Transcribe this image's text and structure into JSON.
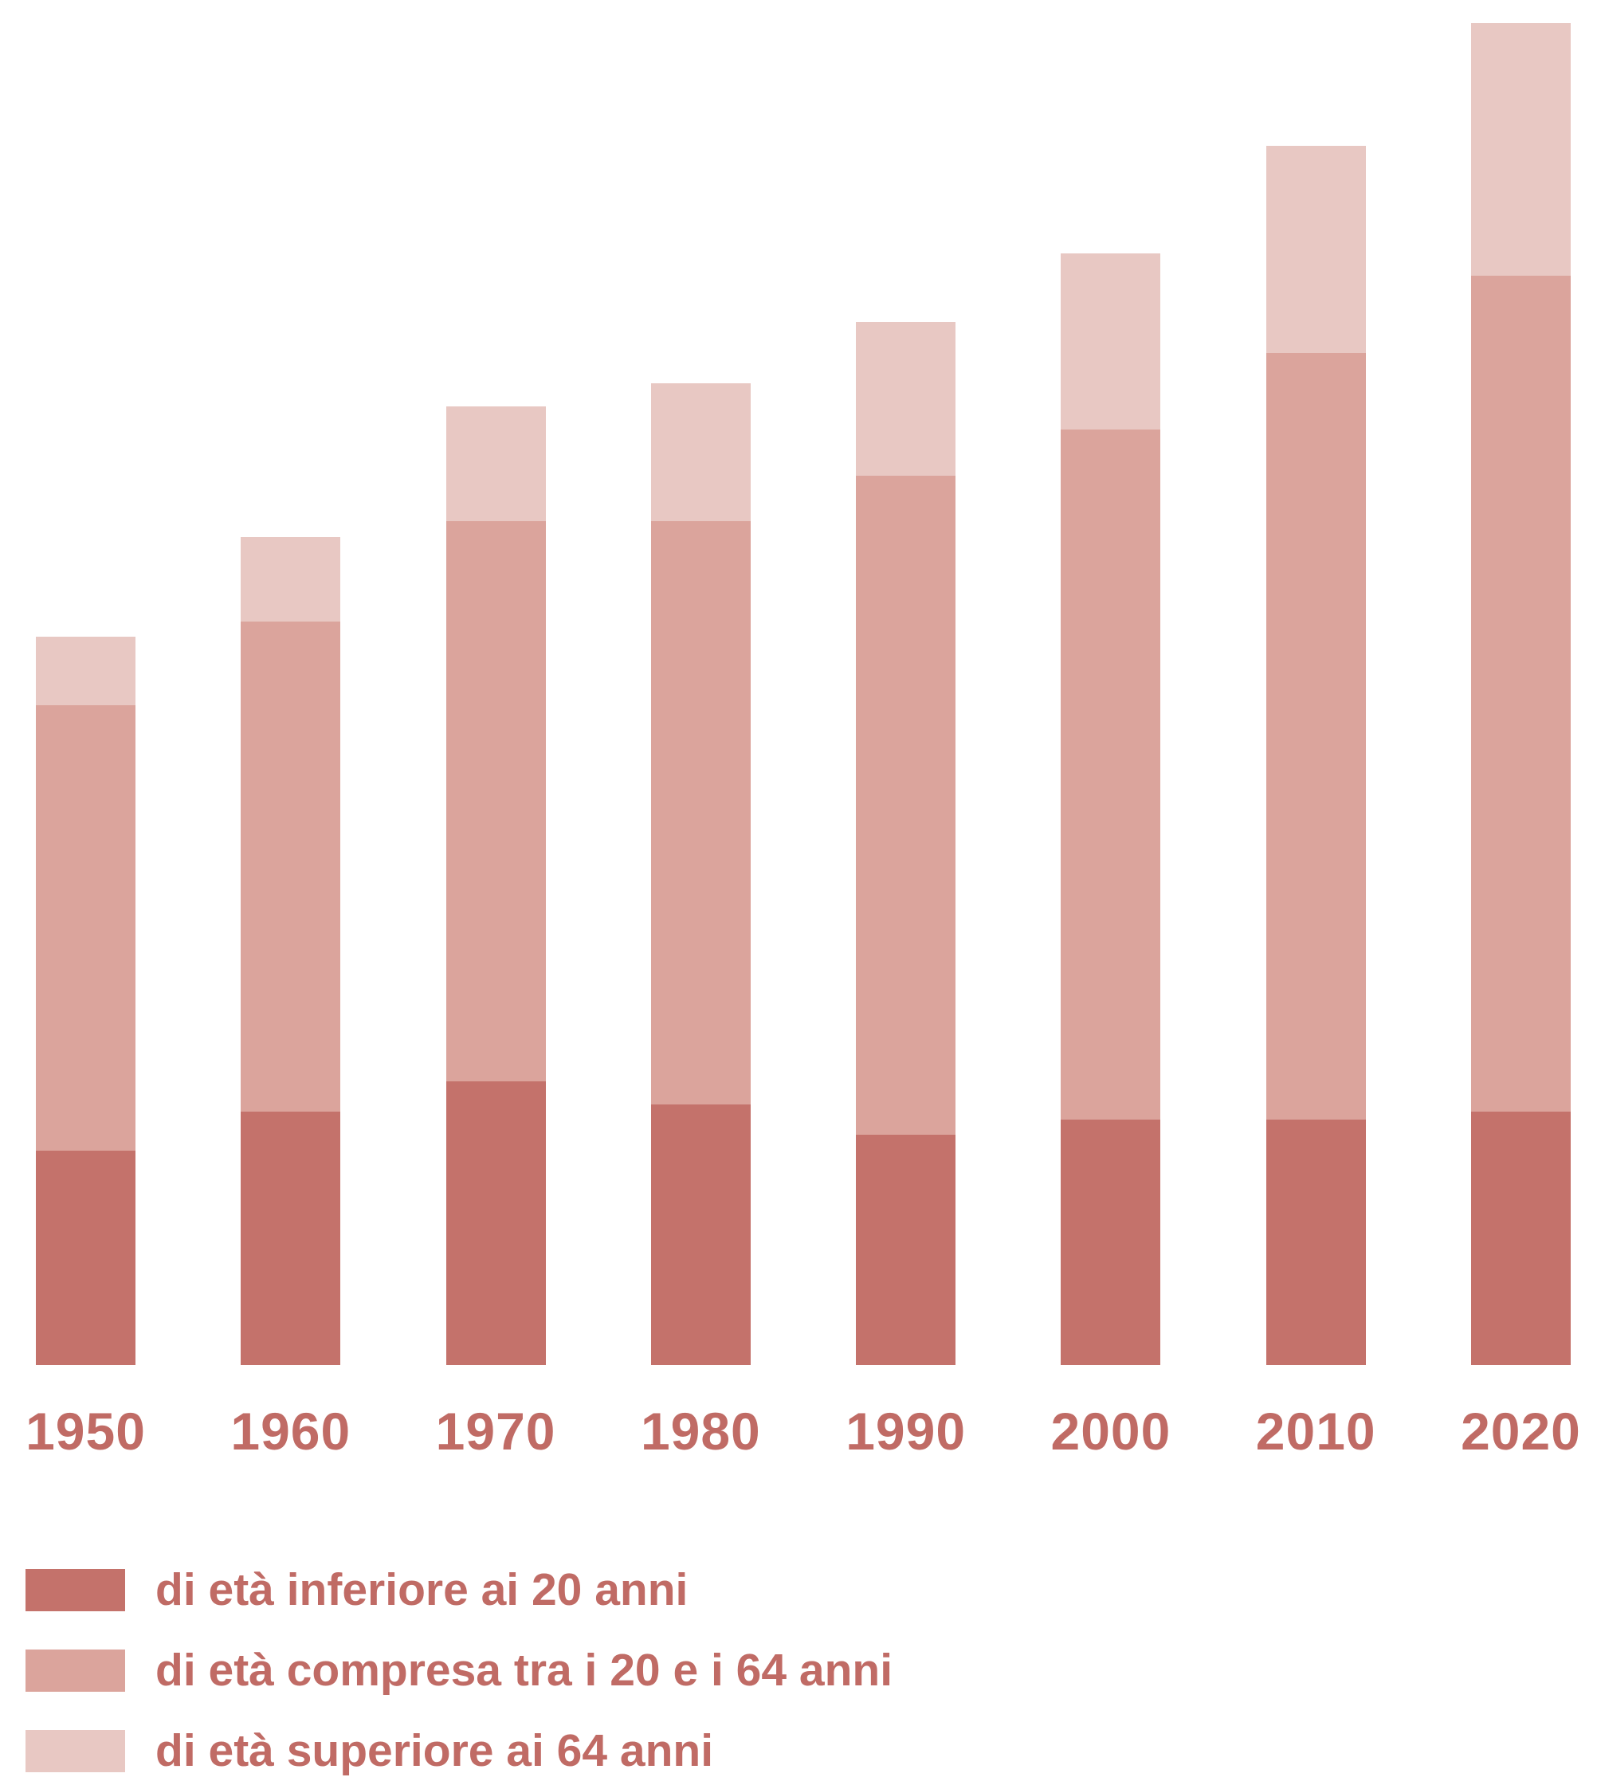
{
  "chart_data": {
    "type": "bar",
    "stacked": true,
    "title": "",
    "x": [
      "1950",
      "1960",
      "1970",
      "1980",
      "1990",
      "2000",
      "2010",
      "2020"
    ],
    "series": [
      {
        "id": "under-20",
        "name": "di età inferiore ai 20 anni",
        "color": "#c4726b",
        "values": [
          1.4,
          1.65,
          1.85,
          1.7,
          1.5,
          1.6,
          1.6,
          1.65
        ]
      },
      {
        "id": "20-64",
        "name": "di età compresa tra i 20 e i 64 anni",
        "color": "#dba49c",
        "values": [
          2.9,
          3.2,
          3.65,
          3.8,
          4.3,
          4.5,
          5.0,
          5.45
        ]
      },
      {
        "id": "over-64",
        "name": "di età superiore ai 64 anni",
        "color": "#e8c8c3",
        "values": [
          0.45,
          0.55,
          0.75,
          0.9,
          1.0,
          1.15,
          1.35,
          1.65
        ]
      }
    ],
    "totals": [
      4.75,
      5.4,
      6.25,
      6.4,
      6.8,
      7.25,
      7.95,
      8.75
    ],
    "ylim": [
      0,
      8.9
    ],
    "axes": {
      "y_axis_visible": false,
      "x_axis_line_visible": false,
      "gridlines": false,
      "x_ticks": [
        "1950",
        "1960",
        "1970",
        "1980",
        "1990",
        "2000",
        "2010",
        "2020"
      ]
    },
    "legend": {
      "position": "bottom-left",
      "labels": [
        "di età inferiore ai 20 anni",
        "di età compresa tra i 20 e i 64 anni",
        "di età superiore ai 64 anni"
      ]
    }
  },
  "style": {
    "label_text_color": "#c06b65",
    "background_color": "#ffffff"
  }
}
